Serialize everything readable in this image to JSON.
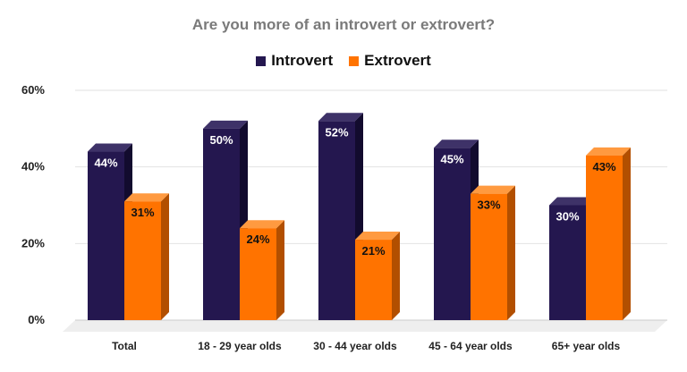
{
  "chart_data": {
    "type": "bar",
    "title": "Are you more of an introvert or extrovert?",
    "categories": [
      "Total",
      "18 - 29 year olds",
      "30 - 44 year olds",
      "45 - 64 year olds",
      "65+ year olds"
    ],
    "series": [
      {
        "name": "Introvert",
        "values": [
          44,
          50,
          52,
          45,
          30
        ],
        "labels": [
          "44%",
          "50%",
          "52%",
          "45%",
          "30%"
        ],
        "color": "#24174f",
        "side_color": "#120b2e",
        "top_color": "#3e3268",
        "label_color": "#ffffff"
      },
      {
        "name": "Extrovert",
        "values": [
          31,
          24,
          21,
          33,
          43
        ],
        "labels": [
          "31%",
          "24%",
          "21%",
          "33%",
          "43%"
        ],
        "color": "#ff7300",
        "side_color": "#b24f00",
        "top_color": "#ff9a40",
        "label_color": "#111111"
      }
    ],
    "yticks": [
      "0%",
      "20%",
      "40%",
      "60%"
    ],
    "ylim": [
      0,
      60
    ],
    "grid": true,
    "legend_position": "top-center"
  }
}
